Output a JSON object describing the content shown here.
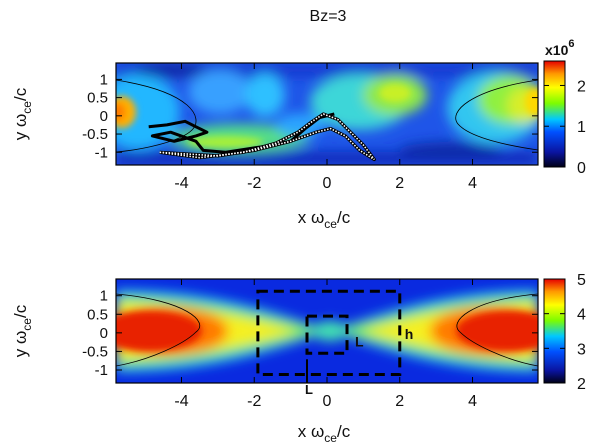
{
  "figure_title": "Bz=3",
  "colors": {
    "colormap": [
      "#000018",
      "#002bff",
      "#00c8ff",
      "#7cfc00",
      "#ffff00",
      "#ff9900",
      "#e60000"
    ],
    "contour": "#000000",
    "background": "#ffffff"
  },
  "chart_data": [
    {
      "type": "heatmap",
      "title": "",
      "xlabel_main": "x ω",
      "xlabel_sub": "ce",
      "xlabel_tail": "/c",
      "ylabel_main": "y ω",
      "ylabel_sub": "ce",
      "ylabel_tail": "/c",
      "xlim": [
        -5.8,
        5.8
      ],
      "ylim": [
        -1.35,
        1.45
      ],
      "x_ticks": [
        -4,
        -2,
        0,
        2,
        4
      ],
      "y_ticks": [
        1,
        0.5,
        0,
        -0.5,
        -1
      ],
      "x_tick_labels": [
        "-4",
        "-2",
        "0",
        "2",
        "4"
      ],
      "y_tick_labels": [
        "1",
        "0.5",
        "0",
        "-0.5",
        "-1"
      ],
      "colorbar": {
        "range": [
          0,
          2.6
        ],
        "ticks": [
          0,
          1,
          2
        ],
        "tick_labels": [
          "0",
          "1",
          "2"
        ],
        "multiplier_base": "x10",
        "multiplier_exp": "6"
      },
      "separatrix_vertex_x": [
        -4.5,
        4.5
      ],
      "particle_tracks": [
        {
          "style": "thick",
          "points": [
            [
              -4.9,
              -0.3
            ],
            [
              -4.4,
              -0.25
            ],
            [
              -3.9,
              -0.15
            ],
            [
              -3.6,
              -0.3
            ],
            [
              -3.3,
              -0.45
            ],
            [
              -3.6,
              -0.55
            ],
            [
              -4.2,
              -0.7
            ],
            [
              -4.8,
              -0.55
            ],
            [
              -4.3,
              -0.45
            ],
            [
              -3.6,
              -0.7
            ],
            [
              -3.4,
              -0.95
            ],
            [
              -2.8,
              -1.0
            ],
            [
              -1.8,
              -0.85
            ],
            [
              -1.0,
              -0.7
            ],
            [
              -0.6,
              -0.35
            ],
            [
              -0.2,
              -0.05
            ],
            [
              0.2,
              0.05
            ]
          ]
        },
        {
          "style": "dotted",
          "points": [
            [
              -4.6,
              -1.0
            ],
            [
              -3.5,
              -1.15
            ],
            [
              -2.3,
              -1.0
            ],
            [
              -1.4,
              -0.75
            ],
            [
              -0.8,
              -0.45
            ],
            [
              -0.4,
              -0.15
            ],
            [
              -0.1,
              0.05
            ],
            [
              0.3,
              -0.1
            ],
            [
              0.6,
              -0.4
            ],
            [
              1.0,
              -0.8
            ],
            [
              1.3,
              -1.2
            ],
            [
              0.9,
              -0.95
            ],
            [
              0.5,
              -0.55
            ],
            [
              0.1,
              -0.35
            ],
            [
              -0.3,
              -0.45
            ],
            [
              -1.0,
              -0.7
            ],
            [
              -2.0,
              -0.95
            ],
            [
              -3.0,
              -1.1
            ],
            [
              -4.6,
              -1.0
            ]
          ]
        }
      ]
    },
    {
      "type": "heatmap",
      "title": "",
      "xlabel_main": "x ω",
      "xlabel_sub": "ce",
      "xlabel_tail": "/c",
      "ylabel_main": "y ω",
      "ylabel_sub": "ce",
      "ylabel_tail": "/c",
      "xlim": [
        -5.8,
        5.8
      ],
      "ylim": [
        -1.35,
        1.45
      ],
      "x_ticks": [
        -4,
        -2,
        0,
        2,
        4
      ],
      "y_ticks": [
        1,
        0.5,
        0,
        -0.5,
        -1
      ],
      "x_tick_labels": [
        "-4",
        "-2",
        "0",
        "2",
        "4"
      ],
      "y_tick_labels": [
        "1",
        "0.5",
        "0",
        "-0.5",
        "-1"
      ],
      "colorbar": {
        "range": [
          2,
          5
        ],
        "ticks": [
          2,
          3,
          4,
          5
        ],
        "tick_labels": [
          "2",
          "3",
          "4",
          "5"
        ]
      },
      "separatrix_vertex_x": [
        -4.5,
        4.5
      ],
      "boxes": [
        {
          "label": "h",
          "x": [
            -1.9,
            2.0
          ],
          "y": [
            -1.12,
            1.12
          ]
        },
        {
          "label": "L",
          "x": [
            -0.55,
            0.55
          ],
          "y": [
            -0.55,
            0.45
          ]
        }
      ],
      "extra_labels": [
        "L"
      ]
    }
  ]
}
